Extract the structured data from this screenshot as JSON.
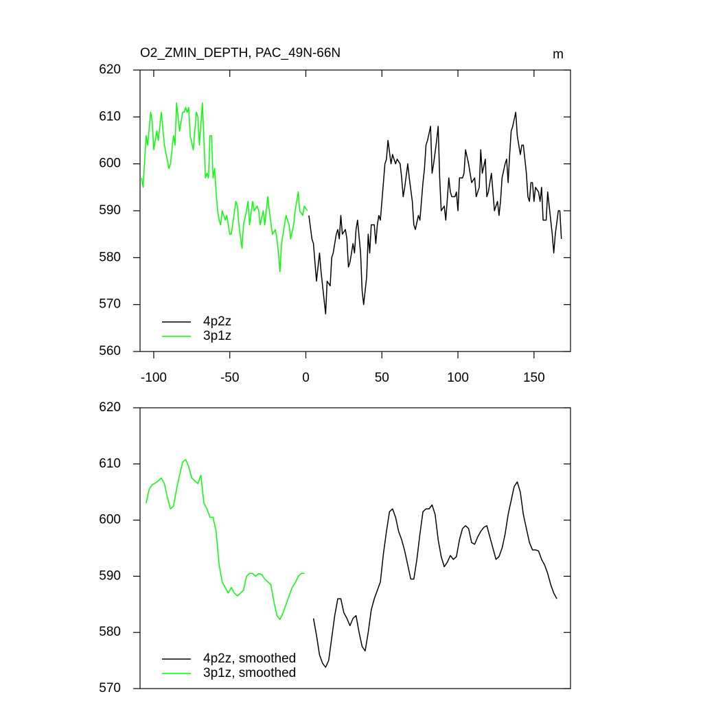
{
  "chart_data": [
    {
      "type": "line",
      "title": "O2_ZMIN_DEPTH, PAC_49N-66N",
      "units": "m",
      "xlim": [
        -109,
        174
      ],
      "xticks": [
        -100,
        -50,
        0,
        50,
        100,
        150
      ],
      "ylim": [
        560,
        620
      ],
      "yticks": [
        560,
        570,
        580,
        590,
        600,
        610,
        620
      ],
      "legend": "lower left",
      "series": [
        {
          "name": "4p2z",
          "color": "#000000",
          "x": [
            2,
            4,
            5,
            7,
            9,
            10,
            11,
            13,
            14,
            16,
            17,
            18,
            20,
            21,
            22,
            23,
            24,
            26,
            27,
            28,
            29,
            31,
            32,
            33,
            34,
            36,
            37,
            38,
            40,
            41,
            42,
            43,
            45,
            46,
            47,
            48,
            49,
            50,
            52,
            53,
            54,
            56,
            57,
            59,
            60,
            62,
            63,
            64,
            65,
            67,
            68,
            70,
            71,
            72,
            74,
            75,
            77,
            78,
            79,
            80,
            82,
            83,
            84,
            86,
            87,
            88,
            89,
            91,
            92,
            94,
            95,
            96,
            98,
            99,
            100,
            101,
            103,
            104,
            105,
            107,
            108,
            109,
            111,
            112,
            114,
            115,
            116,
            118,
            119,
            120,
            122,
            123,
            124,
            126,
            127,
            128,
            129,
            131,
            132,
            133,
            134,
            135,
            136,
            138,
            139,
            141,
            142,
            143,
            145,
            146,
            147,
            148,
            149,
            150,
            151,
            153,
            154,
            155,
            156,
            158,
            159,
            160,
            162,
            163,
            164,
            166,
            167,
            168
          ],
          "values": [
            589,
            584,
            583,
            575,
            581,
            577,
            574,
            568,
            575,
            574,
            580,
            581,
            585,
            586,
            584,
            589,
            585,
            586,
            584,
            578,
            579,
            583,
            581,
            586,
            588,
            581,
            573,
            570,
            576,
            585,
            581,
            587,
            587,
            583,
            587,
            589,
            588,
            592,
            600,
            601,
            605,
            600,
            602,
            600,
            601,
            600,
            597,
            593,
            595,
            600,
            597,
            592,
            587,
            586,
            589,
            588,
            596,
            599,
            604,
            605,
            608,
            598,
            600,
            605,
            608,
            597,
            590,
            591,
            588,
            597,
            594,
            593,
            593,
            594,
            590,
            597,
            597,
            598,
            603,
            600,
            598,
            596,
            597,
            593,
            595,
            603,
            598,
            601,
            593,
            594,
            598,
            594,
            590,
            592,
            589,
            592,
            597,
            600,
            601,
            596,
            602,
            607,
            608,
            611,
            606,
            602,
            604,
            604,
            598,
            593,
            592,
            596,
            596,
            592,
            595,
            594,
            592,
            595,
            588,
            588,
            594,
            591,
            585,
            581,
            585,
            590,
            590,
            584
          ]
        },
        {
          "name": "3p1z",
          "color": "#00ff00",
          "x": [
            -108,
            -107,
            -105,
            -104,
            -102,
            -101,
            -100,
            -98,
            -97,
            -95,
            -93,
            -90,
            -89,
            -87,
            -86,
            -85,
            -83,
            -81,
            -80,
            -79,
            -78,
            -77,
            -76,
            -74,
            -72,
            -71,
            -70,
            -68,
            -66,
            -65,
            -64,
            -63,
            -62,
            -61,
            -60,
            -59,
            -58,
            -57,
            -56,
            -55,
            -53,
            -52,
            -50,
            -49,
            -46,
            -45,
            -44,
            -42,
            -41,
            -39,
            -38,
            -37,
            -35,
            -34,
            -32,
            -31,
            -30,
            -28,
            -27,
            -25,
            -24,
            -22,
            -20,
            -19,
            -18,
            -17,
            -16,
            -14,
            -13,
            -11,
            -10,
            -8,
            -7,
            -5,
            -4,
            -2,
            -1,
            1
          ],
          "values": [
            597,
            595,
            606,
            604,
            611,
            609,
            603,
            607,
            605,
            611,
            604,
            599,
            600,
            606,
            604,
            613,
            607,
            611,
            611,
            612,
            611,
            612,
            606,
            603,
            611,
            610,
            604,
            613,
            597,
            598,
            597,
            606,
            606,
            597,
            599,
            594,
            590,
            588,
            587,
            590,
            588,
            589,
            585,
            585,
            592,
            591,
            587,
            582,
            587,
            590,
            592,
            587,
            592,
            590,
            591,
            590,
            587,
            590,
            587,
            593,
            590,
            585,
            586,
            584,
            581,
            577,
            583,
            587,
            589,
            587,
            584,
            587,
            590,
            594,
            590,
            589,
            591,
            590
          ]
        }
      ]
    },
    {
      "type": "line",
      "xlim": [
        -109,
        174
      ],
      "ylim": [
        570,
        620
      ],
      "yticks": [
        570,
        580,
        590,
        600,
        610,
        620
      ],
      "legend": "lower left",
      "series": [
        {
          "name": "4p2z, smoothed",
          "color": "#000000",
          "x": [
            5,
            7,
            9,
            11,
            13,
            15,
            17,
            19,
            21,
            23,
            25,
            27,
            29,
            31,
            33,
            35,
            37,
            39,
            41,
            43,
            45,
            47,
            49,
            51,
            53,
            55,
            57,
            59,
            61,
            63,
            65,
            67,
            69,
            71,
            73,
            75,
            77,
            79,
            81,
            83,
            85,
            87,
            89,
            91,
            93,
            95,
            97,
            99,
            101,
            103,
            105,
            107,
            109,
            111,
            113,
            115,
            117,
            119,
            121,
            123,
            125,
            127,
            129,
            131,
            133,
            135,
            137,
            139,
            141,
            143,
            145,
            147,
            149,
            151,
            153,
            155,
            157,
            159,
            161,
            163,
            165
          ],
          "values": [
            582.5,
            579.5,
            576,
            574.5,
            573.8,
            575,
            579,
            583,
            586,
            586,
            583.5,
            582.5,
            581.2,
            582.5,
            583,
            580,
            577.5,
            576.7,
            580,
            584,
            586,
            587.5,
            589,
            594,
            598,
            601.5,
            602,
            600.5,
            598,
            596.5,
            594.5,
            592,
            589.5,
            589.5,
            593,
            597.5,
            601.5,
            602,
            602,
            602.7,
            601,
            596.5,
            593.5,
            591.7,
            592.5,
            593.7,
            593,
            593.5,
            596.5,
            598.5,
            599,
            598.5,
            596,
            595.7,
            597,
            598,
            598.7,
            599,
            597,
            595,
            593,
            593.5,
            595,
            597.5,
            601,
            603.5,
            606,
            606.8,
            605,
            601,
            598.5,
            596,
            594.7,
            594.7,
            594.5,
            593,
            592,
            590.5,
            588.5,
            587,
            586
          ]
        },
        {
          "name": "3p1z, smoothed",
          "color": "#00ff00",
          "x": [
            -105,
            -103,
            -101,
            -99,
            -97,
            -95,
            -93,
            -91,
            -89,
            -87,
            -85,
            -83,
            -81,
            -79,
            -77,
            -75,
            -73,
            -71,
            -69,
            -67,
            -65,
            -63,
            -61,
            -59,
            -57,
            -55,
            -53,
            -51,
            -49,
            -47,
            -45,
            -43,
            -41,
            -39,
            -37,
            -35,
            -33,
            -31,
            -29,
            -27,
            -25,
            -23,
            -21,
            -19,
            -17,
            -15,
            -13,
            -11,
            -9,
            -7,
            -5,
            -3,
            -1
          ],
          "values": [
            603,
            605.5,
            606.3,
            606.6,
            607,
            607.5,
            606.5,
            604,
            602,
            602.5,
            605.5,
            608,
            610.3,
            610.8,
            609.5,
            607.5,
            607,
            606.5,
            608,
            603,
            602,
            600.5,
            600.5,
            598,
            592,
            589,
            588,
            587,
            588,
            587,
            586.5,
            587,
            587.5,
            590,
            590.5,
            590.5,
            590,
            590.5,
            590.3,
            589.5,
            589,
            588.5,
            585.5,
            583,
            582.3,
            583.5,
            585,
            586.5,
            588,
            588.8,
            590,
            590.5,
            590.5
          ]
        }
      ]
    }
  ]
}
